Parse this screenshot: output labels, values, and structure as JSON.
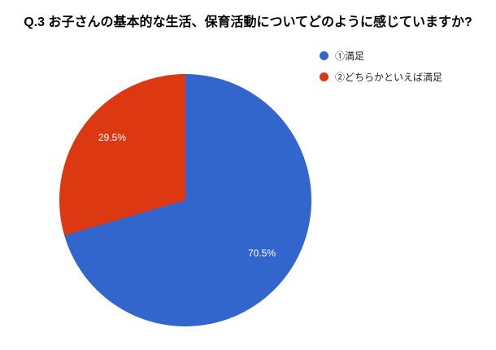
{
  "title": "Q.3 お子さんの基本的な生活、保育活動についてどのように感じていますか?",
  "legend": {
    "items": [
      {
        "label": "①満足",
        "color": "#3366CC"
      },
      {
        "label": "②どちらかといえば満足",
        "color": "#DC3912"
      }
    ]
  },
  "chart_data": {
    "type": "pie",
    "title": "Q.3 お子さんの基本的な生活、保育活動についてどのように感じていますか?",
    "categories": [
      "①満足",
      "②どちらかといえば満足"
    ],
    "values": [
      70.5,
      29.5
    ],
    "unit": "%",
    "colors": [
      "#3366CC",
      "#DC3912"
    ],
    "slice_labels": [
      "70.5%",
      "29.5%"
    ],
    "start_angle_deg": 0,
    "direction": "clockwise",
    "legend_position": "top-right",
    "background": "#ffffff"
  }
}
